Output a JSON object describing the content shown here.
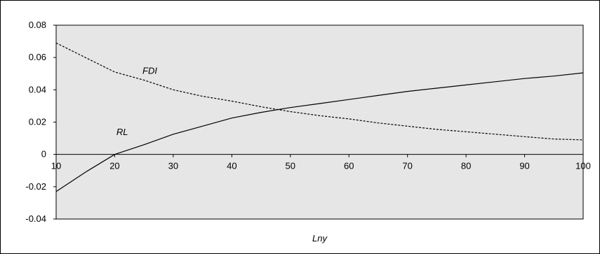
{
  "chart_data": {
    "type": "line",
    "title": "",
    "xlabel": "Lny",
    "ylabel": "",
    "xlim": [
      10,
      100
    ],
    "ylim": [
      -0.04,
      0.08
    ],
    "x_ticks": [
      "10",
      "20",
      "30",
      "40",
      "50",
      "60",
      "70",
      "80",
      "90",
      "100"
    ],
    "y_ticks": [
      "0.08",
      "0.06",
      "0.04",
      "0.02",
      "0",
      "-0.02",
      "-0.04"
    ],
    "grid": false,
    "legend": "none",
    "colors": {
      "plot_background": "#e6e6e6",
      "line": "#000000"
    },
    "series": [
      {
        "name": "RL",
        "style": "solid",
        "x": [
          10,
          15,
          20,
          25,
          30,
          35,
          40,
          45,
          50,
          55,
          60,
          65,
          70,
          75,
          80,
          85,
          90,
          95,
          100
        ],
        "y": [
          -0.023,
          -0.011,
          0.0,
          0.006,
          0.0125,
          0.0175,
          0.0225,
          0.026,
          0.029,
          0.0315,
          0.034,
          0.0365,
          0.039,
          0.041,
          0.043,
          0.045,
          0.047,
          0.0485,
          0.0505
        ]
      },
      {
        "name": "FDI",
        "style": "dashed",
        "x": [
          10,
          15,
          20,
          25,
          30,
          35,
          40,
          45,
          50,
          55,
          60,
          65,
          70,
          75,
          80,
          85,
          90,
          95,
          100
        ],
        "y": [
          0.069,
          0.06,
          0.051,
          0.046,
          0.04,
          0.036,
          0.033,
          0.0295,
          0.0265,
          0.024,
          0.022,
          0.0195,
          0.0175,
          0.0155,
          0.014,
          0.0125,
          0.011,
          0.0095,
          0.009
        ]
      }
    ]
  }
}
